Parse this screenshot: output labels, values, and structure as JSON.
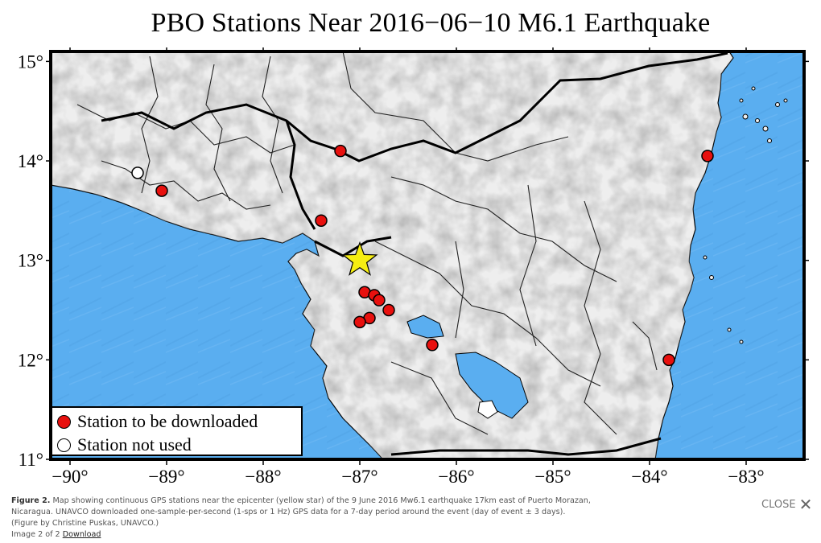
{
  "figure": {
    "title": "PBO Stations Near 2016−06−10 M6.1 Earthquake",
    "x_ticks": [
      "−90°",
      "−89°",
      "−88°",
      "−87°",
      "−86°",
      "−85°",
      "−84°",
      "−83°"
    ],
    "y_ticks": [
      "15°",
      "14°",
      "13°",
      "12°",
      "11°"
    ],
    "legend": {
      "downloaded_label": "Station to be downloaded",
      "not_used_label": "Station not used"
    },
    "colors": {
      "ocean": "#5aaef0",
      "land": "#eeeeee",
      "downloaded_station": "#e8100e",
      "not_used_station": "#ffffff",
      "epicenter": "#f6ee12"
    }
  },
  "map_data": {
    "lon_range": [
      -90.2,
      -82.4
    ],
    "lat_range": [
      11,
      15.1
    ],
    "epicenter": {
      "lon": -87.0,
      "lat": 13.0,
      "symbol": "star-icon"
    },
    "stations_downloaded": [
      {
        "lon": -87.2,
        "lat": 14.1
      },
      {
        "lon": -89.05,
        "lat": 13.7
      },
      {
        "lon": -87.4,
        "lat": 13.4
      },
      {
        "lon": -86.95,
        "lat": 12.68
      },
      {
        "lon": -86.85,
        "lat": 12.65
      },
      {
        "lon": -86.8,
        "lat": 12.6
      },
      {
        "lon": -86.7,
        "lat": 12.5
      },
      {
        "lon": -86.9,
        "lat": 12.42
      },
      {
        "lon": -87.0,
        "lat": 12.38
      },
      {
        "lon": -86.25,
        "lat": 12.15
      },
      {
        "lon": -83.4,
        "lat": 14.05
      },
      {
        "lon": -83.8,
        "lat": 12.0
      }
    ],
    "stations_not_used": [
      {
        "lon": -89.3,
        "lat": 13.88
      }
    ]
  },
  "caption": {
    "figure_label": "Figure 2.",
    "text": "Map showing continuous GPS stations near the epicenter (yellow star) of the 9 June 2016 Mw6.1 earthquake 17km east of Puerto Morazan, Nicaragua. UNAVCO downloaded one-sample-per-second (1-sps or 1 Hz) GPS data for a 7-day period around the event (day of event ± 3 days). (Figure by Christine Puskas, UNAVCO.)",
    "image_counter": "Image 2 of 2",
    "download_link": "Download"
  },
  "close_label": "CLOSE",
  "close_icon": "close-icon"
}
